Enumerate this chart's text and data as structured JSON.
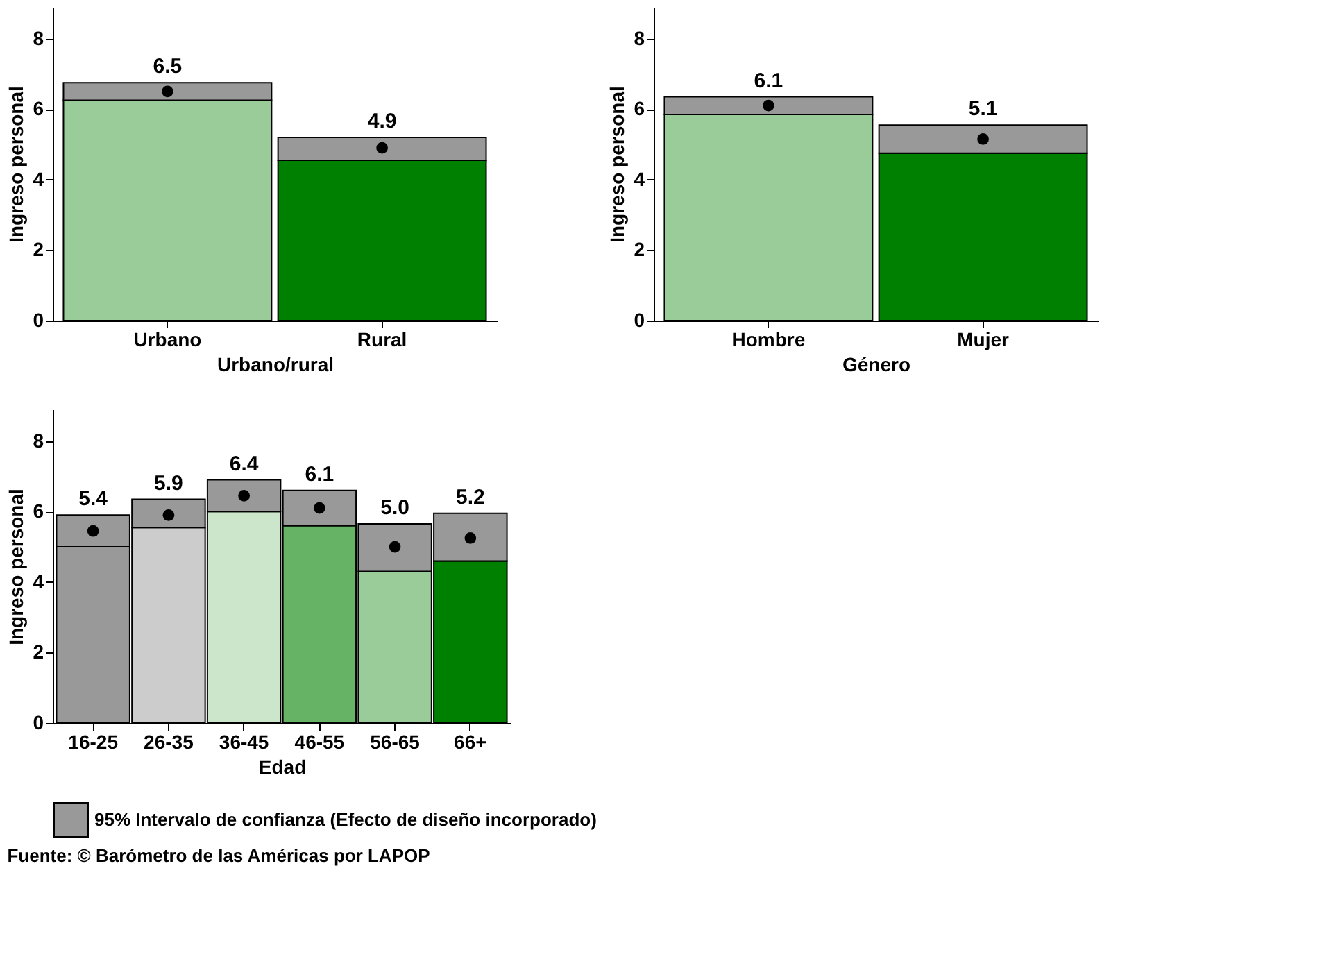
{
  "chart_data": [
    {
      "type": "bar",
      "stacked": true,
      "categories": [
        "Urbano",
        "Rural"
      ],
      "xlabel": "Urbano/rural",
      "ylabel": "Ingreso personal",
      "ylim": [
        0,
        8.9
      ],
      "yticks": [
        0,
        2,
        4,
        6,
        8
      ],
      "grid": false,
      "legend": false,
      "series": [
        {
          "colors": [
            "#99cc99",
            "#008000"
          ],
          "values": [
            6.25,
            4.55
          ]
        },
        {
          "color": "#999999",
          "values": [
            0.5,
            0.65
          ]
        },
        {
          "type": "scatter",
          "color": "#000000",
          "values": [
            6.5,
            4.9
          ],
          "value_labels": [
            "6.5",
            "4.9"
          ]
        }
      ]
    },
    {
      "type": "bar",
      "stacked": true,
      "categories": [
        "Hombre",
        "Mujer"
      ],
      "xlabel": "Género",
      "ylabel": "Ingreso personal",
      "ylim": [
        0,
        8.9
      ],
      "yticks": [
        0,
        2,
        4,
        6,
        8
      ],
      "grid": false,
      "legend": false,
      "series": [
        {
          "colors": [
            "#99cc99",
            "#008000"
          ],
          "values": [
            5.85,
            4.75
          ]
        },
        {
          "color": "#999999",
          "values": [
            0.5,
            0.8
          ]
        },
        {
          "type": "scatter",
          "color": "#000000",
          "values": [
            6.1,
            5.15
          ],
          "value_labels": [
            "6.1",
            "5.1"
          ]
        }
      ]
    },
    {
      "type": "bar",
      "stacked": true,
      "categories": [
        "16-25",
        "26-35",
        "36-45",
        "46-55",
        "56-65",
        "66+"
      ],
      "xlabel": "Edad",
      "ylabel": "Ingreso personal",
      "ylim": [
        0,
        8.9
      ],
      "yticks": [
        0,
        2,
        4,
        6,
        8
      ],
      "grid": false,
      "legend": "bottom",
      "series": [
        {
          "colors": [
            "#999999",
            "#cccccc",
            "#cce6cc",
            "#66b366",
            "#99cc99",
            "#008000"
          ],
          "values": [
            5.0,
            5.55,
            6.0,
            5.6,
            4.3,
            4.6
          ]
        },
        {
          "name": "95% Intervalo de confianza (Efecto de diseño incorporado)",
          "color": "#999999",
          "values": [
            0.9,
            0.8,
            0.9,
            1.0,
            1.35,
            1.35
          ]
        },
        {
          "type": "scatter",
          "color": "#000000",
          "values": [
            5.45,
            5.9,
            6.45,
            6.1,
            5.0,
            5.25
          ],
          "value_labels": [
            "5.4",
            "5.9",
            "6.4",
            "6.1",
            "5.0",
            "5.2"
          ]
        }
      ],
      "annotations": [
        "Fuente: © Barómetro de las Américas por LAPOP"
      ]
    }
  ]
}
